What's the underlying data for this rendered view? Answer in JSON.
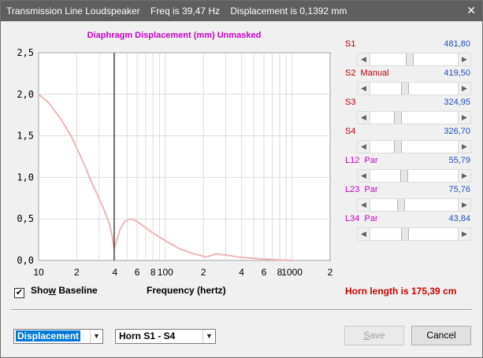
{
  "window": {
    "title": "Transmission Line Loudspeaker    Freq is 39,47 Hz    Displacement is 0,1392 mm",
    "close_glyph": "✕"
  },
  "chart_heading": "Diaphragm Displacement (mm)    Unmasked",
  "chart_data": {
    "type": "line",
    "title": "Diaphragm Displacement (mm)    Unmasked",
    "xlabel": "Frequency (hertz)",
    "ylabel": "",
    "x_scale": "log",
    "xlim": [
      10,
      2000
    ],
    "ylim": [
      0,
      2.5
    ],
    "grid": true,
    "y_ticks": [
      "0,0",
      "0,5",
      "1,0",
      "1,5",
      "2,0",
      "2,5"
    ],
    "x_ticks": [
      "10",
      "2",
      "4",
      "6",
      "8",
      "100",
      "2",
      "4",
      "6",
      "8",
      "1000",
      "2"
    ],
    "x_tick_values": [
      10,
      20,
      40,
      60,
      80,
      100,
      200,
      400,
      600,
      800,
      1000,
      2000
    ],
    "marker_frequency": 39.47,
    "series": [
      {
        "color": "#f0b4b4",
        "x": [
          10,
          12,
          15,
          18,
          20,
          23,
          26,
          30,
          33,
          36,
          38,
          39.5,
          41,
          44,
          48,
          53,
          58,
          65,
          75,
          90,
          110,
          130,
          160,
          190,
          210,
          230,
          250,
          280,
          320,
          380,
          450,
          550,
          700,
          850,
          1000
        ],
        "y": [
          2.0,
          1.9,
          1.7,
          1.5,
          1.35,
          1.15,
          0.95,
          0.75,
          0.6,
          0.45,
          0.3,
          0.14,
          0.22,
          0.38,
          0.47,
          0.5,
          0.48,
          0.43,
          0.36,
          0.28,
          0.2,
          0.14,
          0.09,
          0.06,
          0.04,
          0.06,
          0.08,
          0.07,
          0.06,
          0.04,
          0.03,
          0.02,
          0.01,
          0.005,
          0.0
        ]
      }
    ]
  },
  "sliders": [
    {
      "label": "S1",
      "suffix": "",
      "value": "481,80",
      "pos": 0.45,
      "color": "red"
    },
    {
      "label": "S2",
      "suffix": "Manual",
      "value": "419,50",
      "pos": 0.39,
      "color": "red"
    },
    {
      "label": "S3",
      "suffix": "",
      "value": "324,95",
      "pos": 0.3,
      "color": "red"
    },
    {
      "label": "S4",
      "suffix": "",
      "value": "326,70",
      "pos": 0.3,
      "color": "red"
    },
    {
      "label": "L12",
      "suffix": "Par",
      "value": "55,79",
      "pos": 0.38,
      "color": "purple"
    },
    {
      "label": "L23",
      "suffix": "Par",
      "value": "75,76",
      "pos": 0.34,
      "color": "purple"
    },
    {
      "label": "L34",
      "suffix": "Par",
      "value": "43,84",
      "pos": 0.39,
      "color": "purple"
    }
  ],
  "show_baseline": {
    "label_pre": "Sho",
    "label_ul": "w",
    "label_post": " Baseline",
    "checked": true,
    "check_glyph": "✔"
  },
  "frequency_label": "Frequency (hertz)",
  "horn_length": "Horn length is 175,39 cm",
  "controls": {
    "display_combo": "Displacement",
    "horn_combo": "Horn S1 - S4",
    "combo_arrow": "▼",
    "save_ul": "S",
    "save_rest": "ave",
    "cancel": "Cancel"
  },
  "slider_arrows": {
    "left": "◀",
    "right": "▶"
  }
}
